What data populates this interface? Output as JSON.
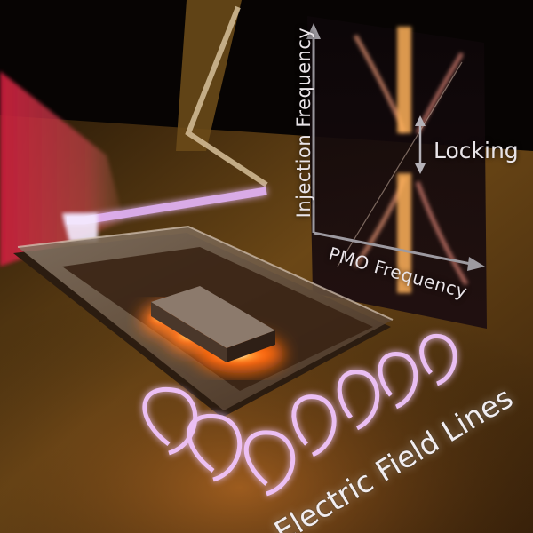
{
  "labels": {
    "y_axis": "Injection Frequency",
    "locking": "Locking",
    "x_axis": "PMO Frequency",
    "field_lines": "Electric Field Lines"
  },
  "colors": {
    "substrate": "#5a3d14",
    "laser_beam": "#e23a4a",
    "waveguide_glow": "#e8b8ff",
    "resonator_glow": "#ff6a1a",
    "field_line_glow": "#f2c6ff",
    "label_text": "#e9e4e8"
  }
}
